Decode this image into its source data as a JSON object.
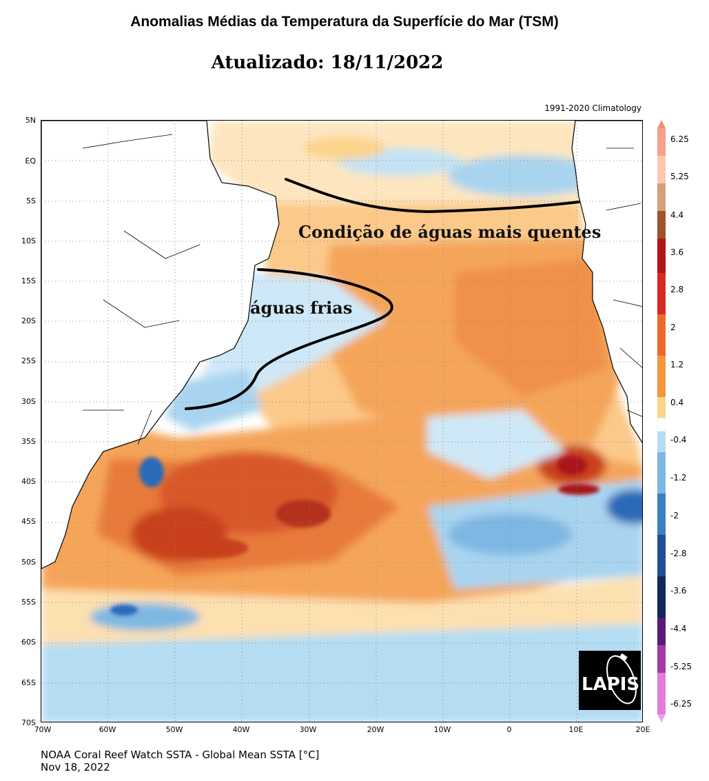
{
  "header": {
    "title": "Anomalias Médias da Temperatura da Superfície do Mar  (TSM)",
    "updated": "Atualizado: 18/11/2022",
    "climatology": "1991-2020 Climatology"
  },
  "map": {
    "lat_labels": [
      "5N",
      "EQ",
      "5S",
      "10S",
      "15S",
      "20S",
      "25S",
      "30S",
      "35S",
      "40S",
      "45S",
      "50S",
      "55S",
      "60S",
      "65S",
      "70S"
    ],
    "lon_labels": [
      "70W",
      "60W",
      "50W",
      "40W",
      "30W",
      "20W",
      "10W",
      "0",
      "10E",
      "20E"
    ],
    "annotations": {
      "warm": "Condição de águas mais quentes",
      "cold": "águas frias"
    },
    "colors": {
      "warm_light": "#fbd38a",
      "warm_mid": "#f5a04c",
      "warm_strong": "#e36a2a",
      "warm_extreme": "#a8191b",
      "neutral": "#ffffff",
      "cool_light": "#b4ddf3",
      "cool_mid": "#7db7e2",
      "cool_strong": "#2a6bb8",
      "land_line": "#000000"
    }
  },
  "colorbar": {
    "labels": [
      "6.25",
      "5.25",
      "4.4",
      "3.6",
      "2.8",
      "2",
      "1.2",
      "0.4",
      "-0.4",
      "-1.2",
      "-2",
      "-2.8",
      "-3.6",
      "-4.4",
      "-5.25",
      "-6.25"
    ]
  },
  "logo": {
    "text": "LAPIS"
  },
  "footer": {
    "source": "NOAA Coral Reef Watch SSTA - Global Mean SSTA [°C]",
    "date": "Nov 18, 2022"
  }
}
